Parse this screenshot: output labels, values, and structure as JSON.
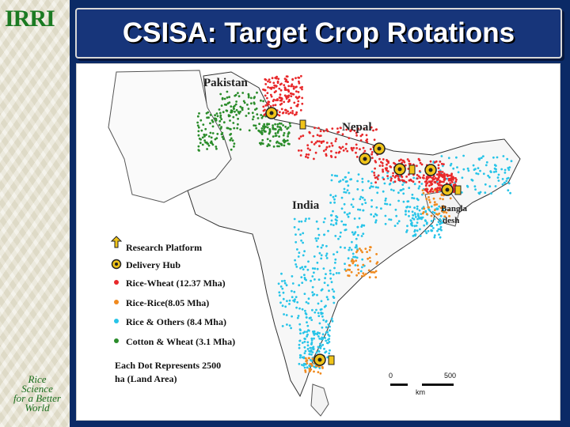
{
  "title": "CSISA: Target Crop Rotations",
  "logos": {
    "top_left": "IRRI",
    "bottom_left": [
      "Rice",
      "Science",
      "for a Better",
      "World"
    ]
  },
  "map": {
    "labels": {
      "pakistan": "Pakistan",
      "nepal": "Nepal",
      "india": "India",
      "bangladesh_1": "Bangla",
      "bangladesh_2": "desh"
    },
    "legend": [
      {
        "name": "research-platform",
        "label": "Research Platform",
        "symbol": "arrow",
        "color": "#f0c419"
      },
      {
        "name": "delivery-hub",
        "label": "Delivery Hub",
        "symbol": "ring",
        "color": "#f0c419"
      },
      {
        "name": "rice-wheat",
        "label": "Rice-Wheat (12.37 Mha)",
        "symbol": "dot",
        "color": "#e8282a"
      },
      {
        "name": "rice-rice",
        "label": "Rice-Rice(8.05 Mha)",
        "symbol": "dot",
        "color": "#f08a1e"
      },
      {
        "name": "rice-others",
        "label": "Rice & Others (8.4 Mha)",
        "symbol": "dot",
        "color": "#27c4e8"
      },
      {
        "name": "cotton-wheat",
        "label": "Cotton & Wheat (3.1 Mha)",
        "symbol": "dot",
        "color": "#2a8c2a"
      }
    ],
    "note": [
      "Each Dot Represents 2500",
      "ha (Land Area)"
    ],
    "scale": {
      "start": "0",
      "end": "500",
      "unit": "km"
    }
  }
}
